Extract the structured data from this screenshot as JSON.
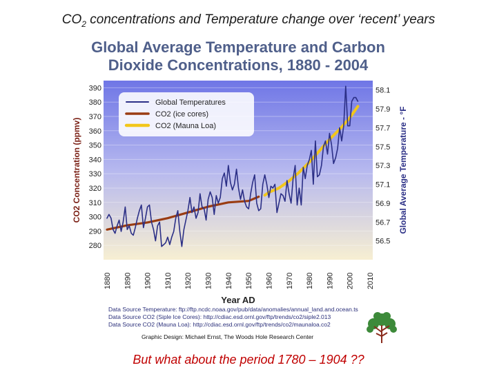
{
  "slide": {
    "title_prefix": "CO",
    "title_sub": "2",
    "title_rest": " concentrations and Temperature change over ‘recent’ years",
    "footer": "But what about the period 1780 – 1904 ??"
  },
  "colors": {
    "temp": "#2b2f86",
    "ice": "#9a3c12",
    "mauna": "#f2c61a",
    "footer": "#c00000"
  },
  "chart_data": {
    "type": "line",
    "title": "Global Average Temperature and Carbon Dioxide Concentrations, 1880 - 2004",
    "xlabel": "Year AD",
    "ylabel_left": "CO2 Concentration (ppmv)",
    "ylabel_right": "Global Average Temperature - °F",
    "xlim": [
      1880,
      2010
    ],
    "ylim_left": [
      270,
      395
    ],
    "ylim_right": [
      56.3,
      58.2
    ],
    "x_ticks": [
      1880,
      1890,
      1900,
      1910,
      1920,
      1930,
      1940,
      1950,
      1960,
      1970,
      1980,
      1990,
      2000,
      2010
    ],
    "y_ticks_left": [
      280,
      290,
      300,
      310,
      320,
      330,
      340,
      350,
      360,
      370,
      380,
      390
    ],
    "y_ticks_right": [
      "56.5",
      "56.7",
      "56.9",
      "57.1",
      "57.3",
      "57.5",
      "57.7",
      "57.9",
      "58.1"
    ],
    "legend": {
      "position": "top-left",
      "entries": [
        "Global Temperatures",
        "CO2 (ice cores)",
        "CO2 (Mauna Loa)"
      ]
    },
    "series": [
      {
        "name": "Global Temperatures",
        "axis": "right",
        "x": [
          1880,
          1881,
          1882,
          1883,
          1884,
          1885,
          1886,
          1887,
          1888,
          1889,
          1890,
          1891,
          1892,
          1893,
          1894,
          1895,
          1896,
          1897,
          1898,
          1899,
          1900,
          1901,
          1902,
          1903,
          1904,
          1905,
          1906,
          1907,
          1908,
          1909,
          1910,
          1911,
          1912,
          1913,
          1914,
          1915,
          1916,
          1917,
          1918,
          1919,
          1920,
          1921,
          1922,
          1923,
          1924,
          1925,
          1926,
          1927,
          1928,
          1929,
          1930,
          1931,
          1932,
          1933,
          1934,
          1935,
          1936,
          1937,
          1938,
          1939,
          1940,
          1941,
          1942,
          1943,
          1944,
          1945,
          1946,
          1947,
          1948,
          1949,
          1950,
          1951,
          1952,
          1953,
          1954,
          1955,
          1956,
          1957,
          1958,
          1959,
          1960,
          1961,
          1962,
          1963,
          1964,
          1965,
          1966,
          1967,
          1968,
          1969,
          1970,
          1971,
          1972,
          1973,
          1974,
          1975,
          1976,
          1977,
          1978,
          1979,
          1980,
          1981,
          1982,
          1983,
          1984,
          1985,
          1986,
          1987,
          1988,
          1989,
          1990,
          1991,
          1992,
          1993,
          1994,
          1995,
          1996,
          1997,
          1998,
          1999,
          2000,
          2001,
          2002,
          2003,
          2004
        ],
        "values": [
          56.74,
          56.78,
          56.74,
          56.62,
          56.58,
          56.66,
          56.72,
          56.6,
          56.7,
          56.86,
          56.62,
          56.66,
          56.58,
          56.56,
          56.64,
          56.74,
          56.82,
          56.88,
          56.64,
          56.74,
          56.86,
          56.88,
          56.7,
          56.62,
          56.5,
          56.66,
          56.7,
          56.44,
          56.46,
          56.48,
          56.54,
          56.46,
          56.54,
          56.6,
          56.74,
          56.82,
          56.6,
          56.44,
          56.62,
          56.72,
          56.82,
          56.96,
          56.8,
          56.86,
          56.74,
          56.8,
          57.0,
          56.86,
          56.84,
          56.72,
          56.94,
          57.02,
          56.96,
          56.78,
          56.98,
          56.9,
          56.96,
          57.16,
          57.22,
          57.08,
          57.3,
          57.12,
          57.04,
          57.1,
          57.26,
          57.06,
          56.94,
          57.04,
          56.92,
          56.86,
          56.84,
          57.0,
          57.12,
          57.2,
          56.9,
          56.82,
          56.84,
          57.1,
          57.2,
          57.1,
          56.96,
          57.08,
          57.06,
          57.1,
          56.8,
          56.9,
          57.0,
          56.98,
          56.92,
          57.14,
          57.0,
          56.9,
          57.16,
          57.3,
          56.88,
          57.06,
          56.88,
          57.28,
          57.16,
          57.3,
          57.36,
          57.46,
          57.1,
          57.56,
          57.18,
          57.2,
          57.3,
          57.5,
          57.56,
          57.42,
          57.64,
          57.52,
          57.32,
          57.38,
          57.48,
          57.7,
          57.56,
          57.72,
          58.14,
          57.72,
          57.72,
          57.98,
          58.02,
          58.02,
          57.98
        ]
      },
      {
        "name": "CO2 (ice cores)",
        "axis": "left",
        "x": [
          1880,
          1890,
          1900,
          1910,
          1920,
          1930,
          1940,
          1950,
          1955
        ],
        "values": [
          291,
          294,
          296,
          299,
          303,
          307,
          310,
          311,
          314
        ]
      },
      {
        "name": "CO2 (Mauna Loa)",
        "axis": "left",
        "x": [
          1958,
          1960,
          1965,
          1970,
          1975,
          1980,
          1985,
          1990,
          1995,
          2000,
          2004
        ],
        "values": [
          315,
          317,
          320,
          325,
          331,
          338,
          346,
          354,
          361,
          369,
          377
        ]
      }
    ]
  },
  "sources": [
    "Data Source Temperature: ftp://ftp.ncdc.noaa.gov/pub/data/anomalies/annual_land.and.ocean.ts",
    "Data Source CO2 (Siple Ice Cores): http://cdiac.esd.ornl.gov/ftp/trends/co2/siple2.013",
    "Data Source CO2 (Mauna Loa): http://cdiac.esd.ornl.gov/ftp/trends/co2/maunaloa.co2"
  ],
  "design_credit": "Graphic Design: Michael Ernst, The Woods Hole Research Center"
}
